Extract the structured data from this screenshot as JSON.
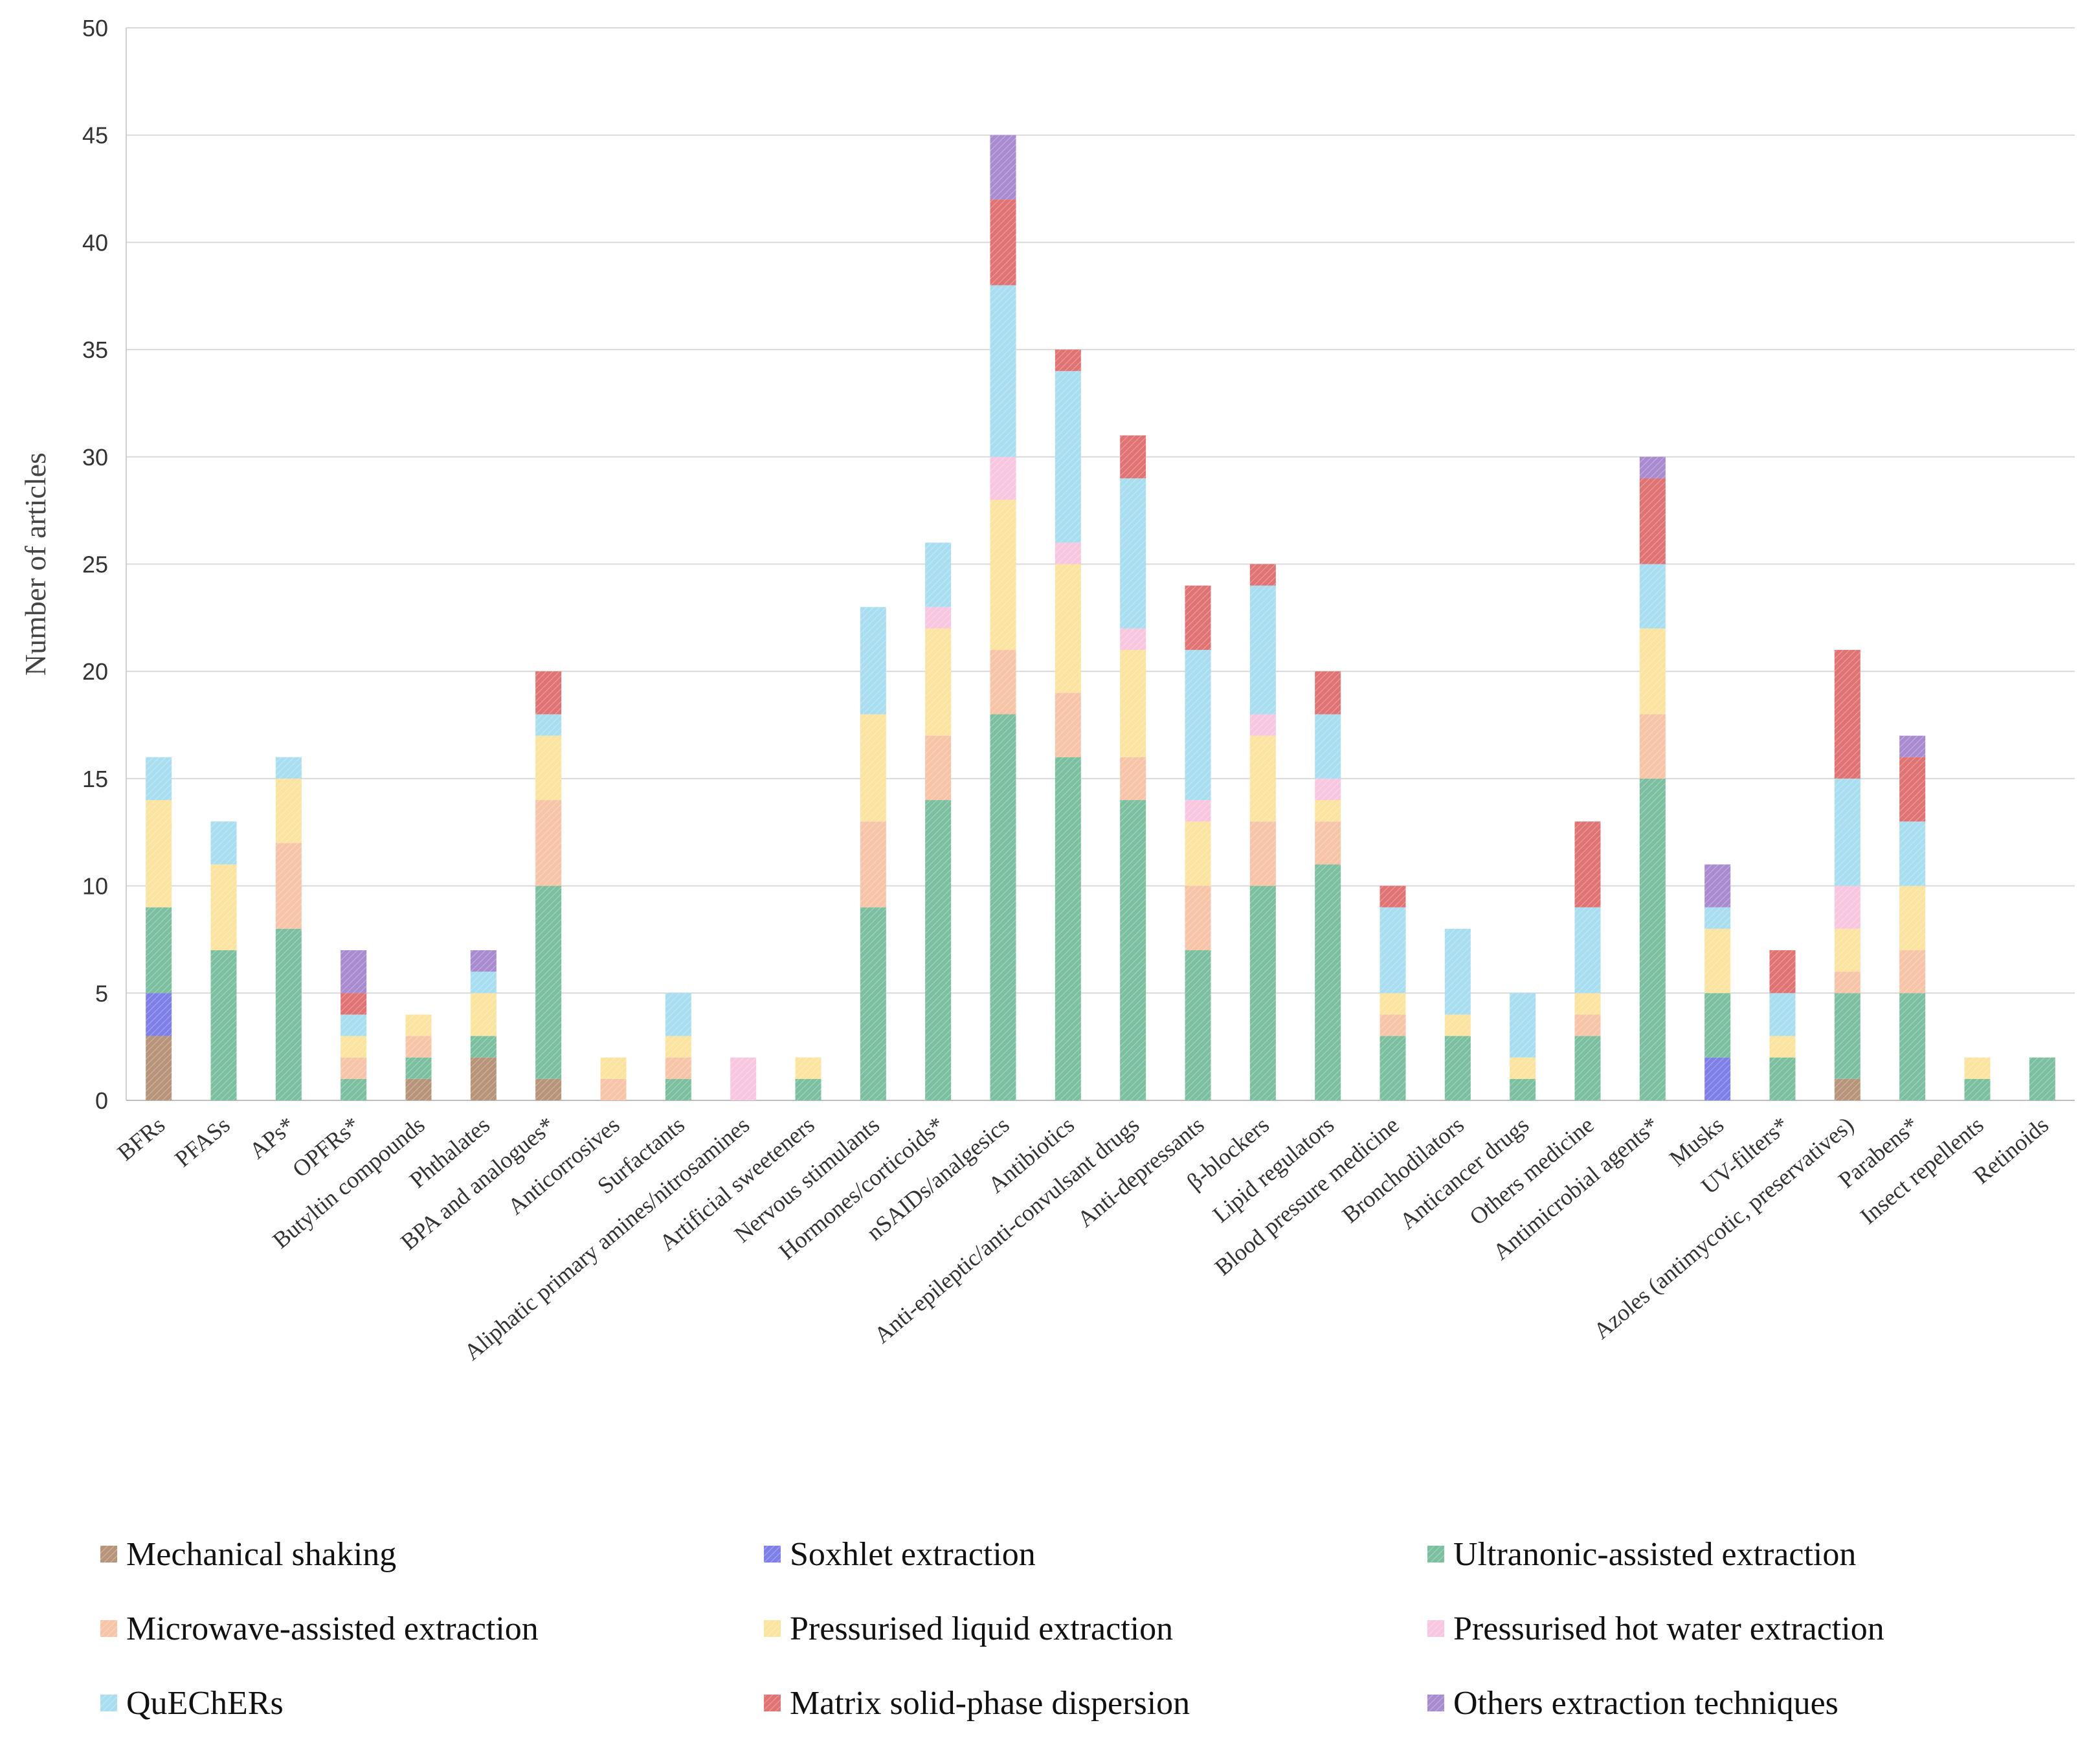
{
  "chart_data": {
    "type": "bar",
    "stacked": true,
    "title": "",
    "xlabel": "",
    "ylabel": "Number of articles",
    "ylim": [
      0,
      50
    ],
    "yticks": [
      0,
      5,
      10,
      15,
      20,
      25,
      30,
      35,
      40,
      45,
      50
    ],
    "grid": true,
    "legend_position": "bottom",
    "categories": [
      "BFRs",
      "PFASs",
      "APs*",
      "OPFRs*",
      "Butyltin compounds",
      "Phthalates",
      "BPA and analogues*",
      "Anticorrosives",
      "Surfactants",
      "Aliphatic primary amines/nitrosamines",
      "Artificial sweeteners",
      "Nervous stimulants",
      "Hormones/corticoids*",
      "nSAIDs/analgesics",
      "Antibiotics",
      "Anti-epileptic/anti-convulsant drugs",
      "Anti-depressants",
      "β-blockers",
      "Lipid regulators",
      "Blood pressure medicine",
      "Bronchodilators",
      "Anticancer drugs",
      "Others medicine",
      "Antimicrobial agents*",
      "Musks",
      "UV-filters*",
      "Azoles (antimycotic, preservatives)",
      "Parabens*",
      "Insect repellents",
      "Retinoids"
    ],
    "series": [
      {
        "name": "Mechanical shaking",
        "color": "#b8957a",
        "values": [
          3,
          0,
          0,
          0,
          1,
          2,
          1,
          0,
          0,
          0,
          0,
          0,
          0,
          0,
          0,
          0,
          0,
          0,
          0,
          0,
          0,
          0,
          0,
          0,
          0,
          0,
          1,
          0,
          0,
          0
        ]
      },
      {
        "name": "Soxhlet extraction",
        "color": "#7f7fe8",
        "values": [
          2,
          0,
          0,
          0,
          0,
          0,
          0,
          0,
          0,
          0,
          0,
          0,
          0,
          0,
          0,
          0,
          0,
          0,
          0,
          0,
          0,
          0,
          0,
          0,
          2,
          0,
          0,
          0,
          0,
          0
        ]
      },
      {
        "name": "Ultranonic-assisted extraction",
        "color": "#7cc0a0",
        "values": [
          4,
          7,
          8,
          1,
          1,
          1,
          9,
          0,
          1,
          0,
          1,
          9,
          14,
          18,
          16,
          14,
          7,
          10,
          11,
          3,
          3,
          1,
          3,
          15,
          3,
          2,
          4,
          5,
          1,
          2
        ]
      },
      {
        "name": "Microwave-assisted extraction",
        "color": "#f7c4a8",
        "values": [
          0,
          0,
          4,
          1,
          1,
          0,
          4,
          1,
          1,
          0,
          0,
          4,
          3,
          3,
          3,
          2,
          3,
          3,
          2,
          1,
          0,
          0,
          1,
          3,
          0,
          0,
          1,
          2,
          0,
          0
        ]
      },
      {
        "name": "Pressurised liquid extraction",
        "color": "#fbe3a0",
        "values": [
          5,
          4,
          3,
          1,
          1,
          2,
          3,
          1,
          1,
          0,
          1,
          5,
          5,
          7,
          6,
          5,
          3,
          4,
          1,
          1,
          1,
          1,
          1,
          4,
          3,
          1,
          2,
          3,
          1,
          0
        ]
      },
      {
        "name": "Pressurised hot water extraction",
        "color": "#f9c6e0",
        "values": [
          0,
          0,
          0,
          0,
          0,
          0,
          0,
          0,
          0,
          2,
          0,
          0,
          1,
          2,
          1,
          1,
          1,
          1,
          1,
          0,
          0,
          0,
          0,
          0,
          0,
          0,
          2,
          0,
          0,
          0
        ]
      },
      {
        "name": "QuEChERs",
        "color": "#a8def0",
        "values": [
          2,
          2,
          1,
          1,
          0,
          1,
          1,
          0,
          2,
          0,
          0,
          5,
          3,
          8,
          8,
          7,
          7,
          6,
          3,
          4,
          4,
          3,
          4,
          3,
          1,
          2,
          5,
          3,
          0,
          0
        ]
      },
      {
        "name": "Matrix solid-phase dispersion",
        "color": "#e07373",
        "values": [
          0,
          0,
          0,
          1,
          0,
          0,
          2,
          0,
          0,
          0,
          0,
          0,
          0,
          4,
          1,
          2,
          3,
          1,
          2,
          1,
          0,
          0,
          4,
          4,
          0,
          2,
          6,
          3,
          0,
          0
        ]
      },
      {
        "name": "Others extraction techniques",
        "color": "#a98bd0",
        "values": [
          0,
          0,
          0,
          2,
          0,
          1,
          0,
          0,
          0,
          0,
          0,
          0,
          0,
          3,
          0,
          0,
          0,
          0,
          0,
          0,
          0,
          0,
          0,
          1,
          2,
          0,
          0,
          1,
          0,
          0
        ]
      }
    ]
  }
}
